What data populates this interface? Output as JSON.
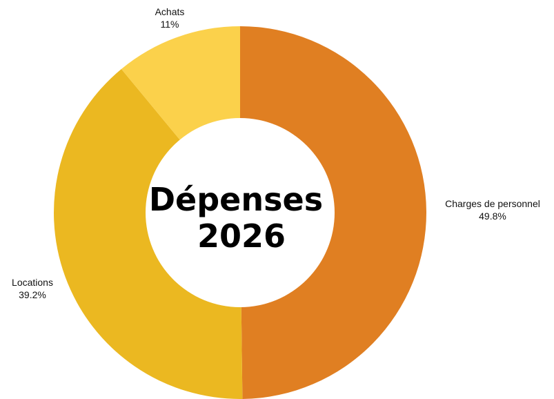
{
  "chart_data": {
    "type": "pie",
    "donut": true,
    "title": [
      "Dépenses",
      "2026"
    ],
    "legend": "none",
    "slices": [
      {
        "label": "Charges de personnel",
        "percent_label": "49.8%",
        "value": 49.8,
        "color": "#e07f22"
      },
      {
        "label": "Locations",
        "percent_label": "39.2%",
        "value": 39.2,
        "color": "#ebb821"
      },
      {
        "label": "Achats",
        "percent_label": "11%",
        "value": 11.0,
        "color": "#fbd14b"
      }
    ]
  }
}
